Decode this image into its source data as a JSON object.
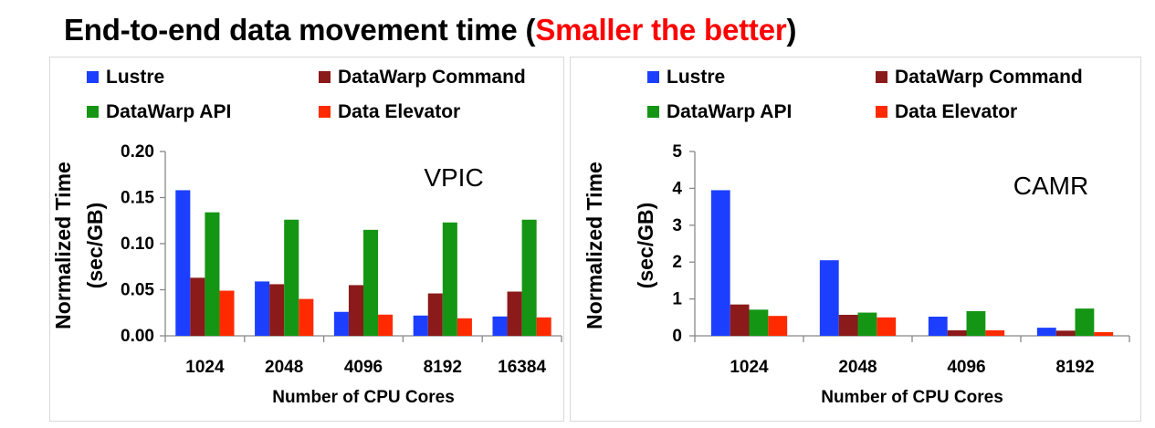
{
  "title": {
    "main": "End-to-end data movement time (",
    "emphasis": "Smaller the better",
    "close": ")",
    "emphasis_color": "#ff0000"
  },
  "chart_data": [
    {
      "type": "bar",
      "annotation": "VPIC",
      "categories": [
        "1024",
        "2048",
        "4096",
        "8192",
        "16384"
      ],
      "xlabel": "Number of CPU Cores",
      "ylabel": [
        "Normalized Time",
        "(sec/GB)"
      ],
      "ylim": [
        0,
        0.2
      ],
      "yticks": [
        "0.00",
        "0.05",
        "0.10",
        "0.15",
        "0.20"
      ],
      "legend_position": "top",
      "grid": false,
      "series": [
        {
          "name": "Lustre",
          "color": "#1c3fff",
          "values": [
            0.158,
            0.059,
            0.026,
            0.022,
            0.021
          ]
        },
        {
          "name": "DataWarp Command",
          "color": "#8b1a1a",
          "values": [
            0.063,
            0.056,
            0.055,
            0.046,
            0.048
          ]
        },
        {
          "name": "DataWarp API",
          "color": "#149614",
          "values": [
            0.134,
            0.126,
            0.115,
            0.123,
            0.126
          ]
        },
        {
          "name": "Data Elevator",
          "color": "#ff2a00",
          "values": [
            0.049,
            0.04,
            0.023,
            0.019,
            0.02
          ]
        }
      ]
    },
    {
      "type": "bar",
      "annotation": "CAMR",
      "categories": [
        "1024",
        "2048",
        "4096",
        "8192"
      ],
      "xlabel": "Number of CPU Cores",
      "ylabel": [
        "Normalized Time",
        "(sec/GB)"
      ],
      "ylim": [
        0,
        5
      ],
      "yticks": [
        "0",
        "1",
        "2",
        "3",
        "4",
        "5"
      ],
      "legend_position": "top",
      "grid": false,
      "series": [
        {
          "name": "Lustre",
          "color": "#1c3fff",
          "values": [
            3.95,
            2.05,
            0.52,
            0.22
          ]
        },
        {
          "name": "DataWarp Command",
          "color": "#8b1a1a",
          "values": [
            0.85,
            0.57,
            0.15,
            0.14
          ]
        },
        {
          "name": "DataWarp API",
          "color": "#149614",
          "values": [
            0.71,
            0.63,
            0.67,
            0.74
          ]
        },
        {
          "name": "Data Elevator",
          "color": "#ff2a00",
          "values": [
            0.54,
            0.5,
            0.15,
            0.1
          ]
        }
      ]
    }
  ]
}
